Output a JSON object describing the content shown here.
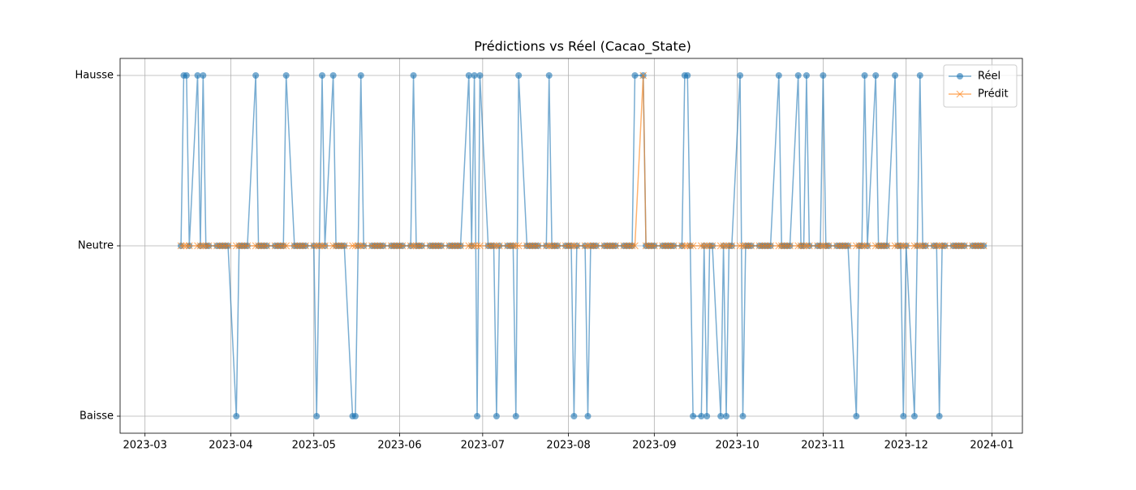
{
  "chart_data": {
    "type": "line",
    "title": "Prédictions vs Réel (Cacao_State)",
    "x": [
      "2023-03-14",
      "2023-03-15",
      "2023-03-16",
      "2023-03-17",
      "2023-03-20",
      "2023-03-21",
      "2023-03-22",
      "2023-03-23",
      "2023-03-24",
      "2023-03-27",
      "2023-03-28",
      "2023-03-29",
      "2023-03-30",
      "2023-03-31",
      "2023-04-03",
      "2023-04-04",
      "2023-04-05",
      "2023-04-06",
      "2023-04-07",
      "2023-04-10",
      "2023-04-11",
      "2023-04-12",
      "2023-04-13",
      "2023-04-14",
      "2023-04-17",
      "2023-04-18",
      "2023-04-19",
      "2023-04-20",
      "2023-04-21",
      "2023-04-24",
      "2023-04-25",
      "2023-04-26",
      "2023-04-27",
      "2023-04-28",
      "2023-05-01",
      "2023-05-02",
      "2023-05-03",
      "2023-05-04",
      "2023-05-05",
      "2023-05-08",
      "2023-05-09",
      "2023-05-10",
      "2023-05-11",
      "2023-05-12",
      "2023-05-15",
      "2023-05-16",
      "2023-05-17",
      "2023-05-18",
      "2023-05-19",
      "2023-05-22",
      "2023-05-23",
      "2023-05-24",
      "2023-05-25",
      "2023-05-26",
      "2023-05-29",
      "2023-05-30",
      "2023-05-31",
      "2023-06-01",
      "2023-06-02",
      "2023-06-05",
      "2023-06-06",
      "2023-06-07",
      "2023-06-08",
      "2023-06-09",
      "2023-06-12",
      "2023-06-13",
      "2023-06-14",
      "2023-06-15",
      "2023-06-16",
      "2023-06-19",
      "2023-06-20",
      "2023-06-21",
      "2023-06-22",
      "2023-06-23",
      "2023-06-26",
      "2023-06-27",
      "2023-06-28",
      "2023-06-29",
      "2023-06-30",
      "2023-07-03",
      "2023-07-04",
      "2023-07-05",
      "2023-07-06",
      "2023-07-07",
      "2023-07-10",
      "2023-07-11",
      "2023-07-12",
      "2023-07-13",
      "2023-07-14",
      "2023-07-17",
      "2023-07-18",
      "2023-07-19",
      "2023-07-20",
      "2023-07-21",
      "2023-07-24",
      "2023-07-25",
      "2023-07-26",
      "2023-07-27",
      "2023-07-28",
      "2023-07-31",
      "2023-08-01",
      "2023-08-02",
      "2023-08-03",
      "2023-08-04",
      "2023-08-07",
      "2023-08-08",
      "2023-08-09",
      "2023-08-10",
      "2023-08-11",
      "2023-08-14",
      "2023-08-15",
      "2023-08-16",
      "2023-08-17",
      "2023-08-18",
      "2023-08-21",
      "2023-08-22",
      "2023-08-23",
      "2023-08-24",
      "2023-08-25",
      "2023-08-28",
      "2023-08-29",
      "2023-08-30",
      "2023-08-31",
      "2023-09-01",
      "2023-09-04",
      "2023-09-05",
      "2023-09-06",
      "2023-09-07",
      "2023-09-08",
      "2023-09-11",
      "2023-09-12",
      "2023-09-13",
      "2023-09-14",
      "2023-09-15",
      "2023-09-18",
      "2023-09-19",
      "2023-09-20",
      "2023-09-21",
      "2023-09-22",
      "2023-09-25",
      "2023-09-26",
      "2023-09-27",
      "2023-09-28",
      "2023-09-29",
      "2023-10-02",
      "2023-10-03",
      "2023-10-04",
      "2023-10-05",
      "2023-10-06",
      "2023-10-09",
      "2023-10-10",
      "2023-10-11",
      "2023-10-12",
      "2023-10-13",
      "2023-10-16",
      "2023-10-17",
      "2023-10-18",
      "2023-10-19",
      "2023-10-20",
      "2023-10-23",
      "2023-10-24",
      "2023-10-25",
      "2023-10-26",
      "2023-10-27",
      "2023-10-30",
      "2023-10-31",
      "2023-11-01",
      "2023-11-02",
      "2023-11-03",
      "2023-11-06",
      "2023-11-07",
      "2023-11-08",
      "2023-11-09",
      "2023-11-10",
      "2023-11-13",
      "2023-11-14",
      "2023-11-15",
      "2023-11-16",
      "2023-11-17",
      "2023-11-20",
      "2023-11-21",
      "2023-11-22",
      "2023-11-23",
      "2023-11-24",
      "2023-11-27",
      "2023-11-28",
      "2023-11-29",
      "2023-11-30",
      "2023-12-01",
      "2023-12-04",
      "2023-12-05",
      "2023-12-06",
      "2023-12-07",
      "2023-12-08",
      "2023-12-11",
      "2023-12-12",
      "2023-12-13",
      "2023-12-14",
      "2023-12-15",
      "2023-12-18",
      "2023-12-19",
      "2023-12-20",
      "2023-12-21",
      "2023-12-22",
      "2023-12-25",
      "2023-12-26",
      "2023-12-27",
      "2023-12-28",
      "2023-12-29"
    ],
    "series": [
      {
        "name": "Réel",
        "color": "#1f77b4",
        "marker": "o",
        "values": [
          1,
          2,
          2,
          1,
          2,
          1,
          2,
          1,
          1,
          1,
          1,
          1,
          1,
          1,
          0,
          1,
          1,
          1,
          1,
          2,
          1,
          1,
          1,
          1,
          1,
          1,
          1,
          1,
          2,
          1,
          1,
          1,
          1,
          1,
          1,
          0,
          1,
          2,
          1,
          2,
          1,
          1,
          1,
          1,
          0,
          0,
          1,
          2,
          1,
          1,
          1,
          1,
          1,
          1,
          1,
          1,
          1,
          1,
          1,
          1,
          2,
          1,
          1,
          1,
          1,
          1,
          1,
          1,
          1,
          1,
          1,
          1,
          1,
          1,
          2,
          1,
          2,
          0,
          2,
          1,
          1,
          1,
          0,
          1,
          1,
          1,
          1,
          0,
          2,
          1,
          1,
          1,
          1,
          1,
          1,
          2,
          1,
          1,
          1,
          1,
          1,
          1,
          0,
          1,
          1,
          0,
          1,
          1,
          1,
          1,
          1,
          1,
          1,
          1,
          1,
          1,
          1,
          1,
          2,
          2,
          1,
          1,
          1,
          1,
          1,
          1,
          1,
          1,
          1,
          1,
          2,
          2,
          1,
          0,
          0,
          1,
          0,
          1,
          1,
          0,
          1,
          0,
          1,
          1,
          2,
          0,
          1,
          1,
          1,
          1,
          1,
          1,
          1,
          1,
          2,
          1,
          1,
          1,
          1,
          2,
          1,
          1,
          2,
          1,
          1,
          1,
          2,
          1,
          1,
          1,
          1,
          1,
          1,
          1,
          0,
          1,
          1,
          2,
          1,
          2,
          1,
          1,
          1,
          1,
          2,
          1,
          1,
          0,
          1,
          0,
          1,
          2,
          1,
          1,
          1,
          1,
          0,
          1,
          1,
          1,
          1,
          1,
          1,
          1,
          1,
          1,
          1,
          1,
          1
        ]
      },
      {
        "name": "Prédit",
        "color": "#ff7f0e",
        "marker": "x",
        "values": [
          1,
          1,
          1,
          1,
          1,
          1,
          1,
          1,
          1,
          1,
          1,
          1,
          1,
          1,
          1,
          1,
          1,
          1,
          1,
          1,
          1,
          1,
          1,
          1,
          1,
          1,
          1,
          1,
          1,
          1,
          1,
          1,
          1,
          1,
          1,
          1,
          1,
          1,
          1,
          1,
          1,
          1,
          1,
          1,
          1,
          1,
          1,
          1,
          1,
          1,
          1,
          1,
          1,
          1,
          1,
          1,
          1,
          1,
          1,
          1,
          1,
          1,
          1,
          1,
          1,
          1,
          1,
          1,
          1,
          1,
          1,
          1,
          1,
          1,
          1,
          1,
          1,
          1,
          1,
          1,
          1,
          1,
          1,
          1,
          1,
          1,
          1,
          1,
          1,
          1,
          1,
          1,
          1,
          1,
          1,
          1,
          1,
          1,
          1,
          1,
          1,
          1,
          1,
          1,
          1,
          1,
          1,
          1,
          1,
          1,
          1,
          1,
          1,
          1,
          1,
          1,
          1,
          1,
          1,
          2,
          1,
          1,
          1,
          1,
          1,
          1,
          1,
          1,
          1,
          1,
          1,
          1,
          1,
          1,
          1,
          1,
          1,
          1,
          1,
          1,
          1,
          1,
          1,
          1,
          1,
          1,
          1,
          1,
          1,
          1,
          1,
          1,
          1,
          1,
          1,
          1,
          1,
          1,
          1,
          1,
          1,
          1,
          1,
          1,
          1,
          1,
          1,
          1,
          1,
          1,
          1,
          1,
          1,
          1,
          1,
          1,
          1,
          1,
          1,
          1,
          1,
          1,
          1,
          1,
          1,
          1,
          1,
          1,
          1,
          1,
          1,
          1,
          1,
          1,
          1,
          1,
          1,
          1,
          1,
          1,
          1,
          1,
          1,
          1,
          1,
          1,
          1,
          1,
          1
        ]
      }
    ],
    "xlim": [
      "2023-02-20",
      "2024-01-12"
    ],
    "xticks": [
      {
        "value": "2023-03-01",
        "label": "2023-03"
      },
      {
        "value": "2023-04-01",
        "label": "2023-04"
      },
      {
        "value": "2023-05-01",
        "label": "2023-05"
      },
      {
        "value": "2023-06-01",
        "label": "2023-06"
      },
      {
        "value": "2023-07-01",
        "label": "2023-07"
      },
      {
        "value": "2023-08-01",
        "label": "2023-08"
      },
      {
        "value": "2023-09-01",
        "label": "2023-09"
      },
      {
        "value": "2023-10-01",
        "label": "2023-10"
      },
      {
        "value": "2023-11-01",
        "label": "2023-11"
      },
      {
        "value": "2023-12-01",
        "label": "2023-12"
      },
      {
        "value": "2024-01-01",
        "label": "2024-01"
      }
    ],
    "ylim": [
      -0.1,
      2.1
    ],
    "yticks": [
      {
        "value": 0,
        "label": "Baisse"
      },
      {
        "value": 1,
        "label": "Neutre"
      },
      {
        "value": 2,
        "label": "Hausse"
      }
    ],
    "grid": true,
    "legend": "upper right"
  }
}
